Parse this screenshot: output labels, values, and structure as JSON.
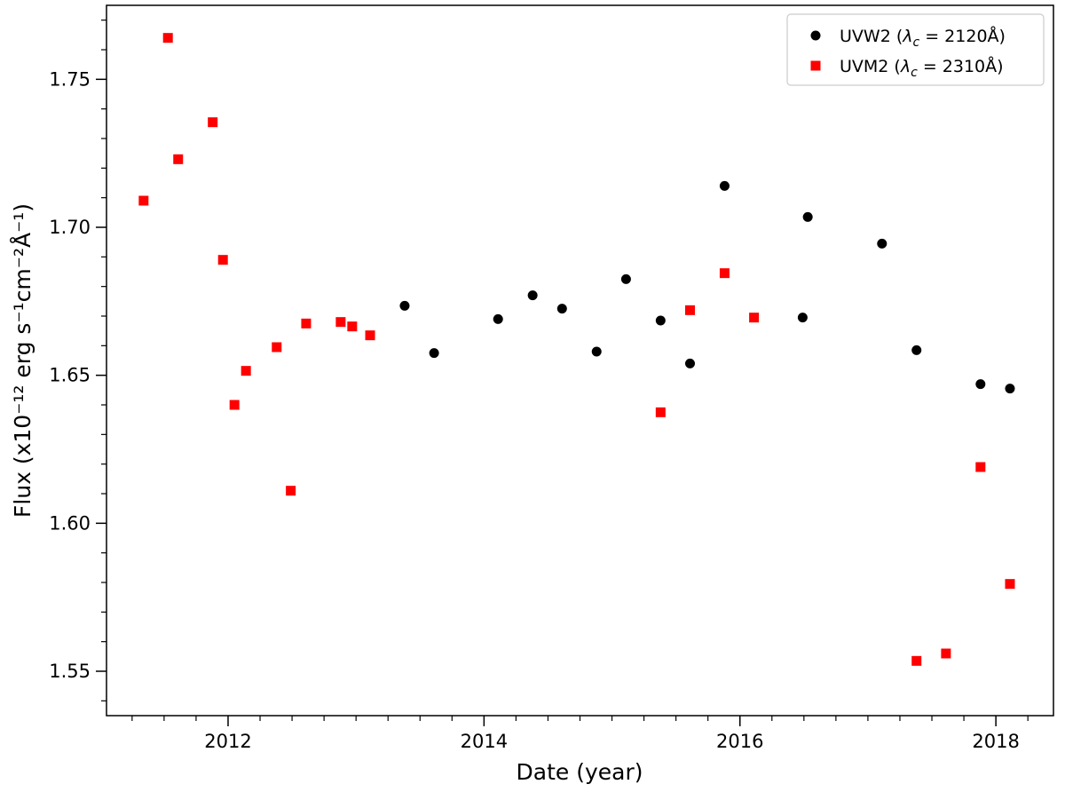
{
  "chart_data": {
    "type": "scatter",
    "title": "",
    "xlabel": "Date (year)",
    "ylabel": "Flux (x10⁻¹² erg s⁻¹cm⁻²Å⁻¹)",
    "xlim": [
      2011.05,
      2018.45
    ],
    "ylim": [
      1.535,
      1.775
    ],
    "x_major_ticks": [
      2012,
      2014,
      2016,
      2018
    ],
    "x_major_tick_labels": [
      "2012",
      "2014",
      "2016",
      "2018"
    ],
    "x_minor_step": 0.25,
    "y_major_ticks": [
      1.55,
      1.6,
      1.65,
      1.7,
      1.75
    ],
    "y_major_tick_labels": [
      "1.55",
      "1.60",
      "1.65",
      "1.70",
      "1.75"
    ],
    "y_minor_step": 0.01,
    "grid": false,
    "legend_position": "top-right",
    "series": [
      {
        "name": "UVW2 (λc = 2120Å)",
        "legend_main": "UVW2 (",
        "legend_lambda": "λ",
        "legend_sub": "c",
        "legend_rest": " = 2120Å)",
        "marker": "circle",
        "color": "#000000",
        "points": [
          {
            "x": 2013.38,
            "y": 1.6735
          },
          {
            "x": 2013.61,
            "y": 1.6575
          },
          {
            "x": 2014.11,
            "y": 1.669
          },
          {
            "x": 2014.38,
            "y": 1.677
          },
          {
            "x": 2014.61,
            "y": 1.6725
          },
          {
            "x": 2014.88,
            "y": 1.658
          },
          {
            "x": 2015.11,
            "y": 1.6825
          },
          {
            "x": 2015.38,
            "y": 1.6685
          },
          {
            "x": 2015.61,
            "y": 1.654
          },
          {
            "x": 2015.88,
            "y": 1.714
          },
          {
            "x": 2016.49,
            "y": 1.6695
          },
          {
            "x": 2016.53,
            "y": 1.7035
          },
          {
            "x": 2017.11,
            "y": 1.6945
          },
          {
            "x": 2017.38,
            "y": 1.6585
          },
          {
            "x": 2017.88,
            "y": 1.647
          },
          {
            "x": 2018.11,
            "y": 1.6455
          }
        ]
      },
      {
        "name": "UVM2 (λc = 2310Å)",
        "legend_main": "UVM2 (",
        "legend_lambda": "λ",
        "legend_sub": "c",
        "legend_rest": " = 2310Å)",
        "marker": "square",
        "color": "#ff0000",
        "points": [
          {
            "x": 2011.34,
            "y": 1.709
          },
          {
            "x": 2011.53,
            "y": 1.764
          },
          {
            "x": 2011.61,
            "y": 1.723
          },
          {
            "x": 2011.88,
            "y": 1.7355
          },
          {
            "x": 2011.96,
            "y": 1.689
          },
          {
            "x": 2012.05,
            "y": 1.64
          },
          {
            "x": 2012.14,
            "y": 1.6515
          },
          {
            "x": 2012.38,
            "y": 1.6595
          },
          {
            "x": 2012.49,
            "y": 1.611
          },
          {
            "x": 2012.61,
            "y": 1.6675
          },
          {
            "x": 2012.88,
            "y": 1.668
          },
          {
            "x": 2012.97,
            "y": 1.6665
          },
          {
            "x": 2013.11,
            "y": 1.6635
          },
          {
            "x": 2015.38,
            "y": 1.6375
          },
          {
            "x": 2015.61,
            "y": 1.672
          },
          {
            "x": 2015.88,
            "y": 1.6845
          },
          {
            "x": 2016.11,
            "y": 1.6695
          },
          {
            "x": 2017.38,
            "y": 1.5535
          },
          {
            "x": 2017.61,
            "y": 1.556
          },
          {
            "x": 2017.88,
            "y": 1.619
          },
          {
            "x": 2018.11,
            "y": 1.5795
          }
        ]
      }
    ]
  }
}
